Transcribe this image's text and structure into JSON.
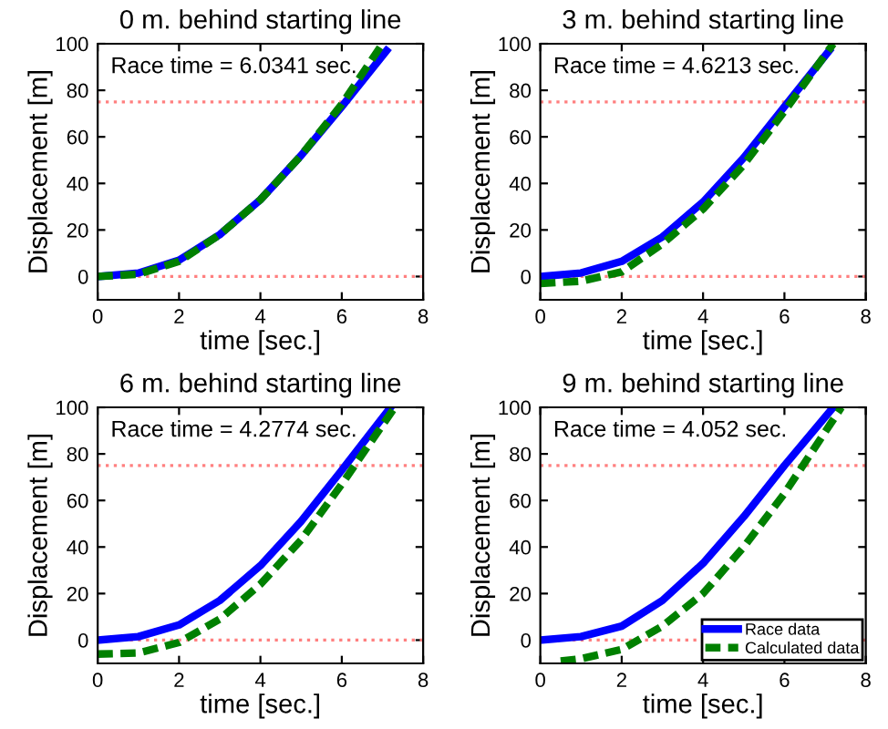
{
  "chart_data": [
    {
      "type": "line",
      "title": "0 m. behind starting line",
      "xlabel": "time [sec.]",
      "ylabel": "Displacement [m]",
      "annotations": [
        "Race time = 6.0341 sec."
      ],
      "xlim": [
        0,
        8
      ],
      "ylim": [
        -10,
        100
      ],
      "xticks": [
        0,
        2,
        4,
        6,
        8
      ],
      "yticks": [
        0,
        20,
        40,
        60,
        80,
        100
      ],
      "marker": "none",
      "legend": false,
      "ref_lines": [
        {
          "axis": "y",
          "value": 0,
          "color": "#ff8080",
          "line_style": "dotted"
        },
        {
          "axis": "y",
          "value": 75,
          "color": "#ff8080",
          "line_style": "dotted"
        }
      ],
      "series": [
        {
          "color": "#0000ff",
          "line_style": "solid",
          "x": [
            0,
            1,
            2,
            3,
            4,
            5,
            6,
            7.1
          ],
          "values": [
            0,
            1.5,
            7,
            18,
            33,
            52,
            73,
            97
          ]
        },
        {
          "color": "#008000",
          "line_style": "dashed",
          "x": [
            0,
            1,
            2,
            3,
            4,
            5,
            6,
            7.0
          ],
          "values": [
            0,
            1,
            6.5,
            18,
            33,
            52,
            74,
            100
          ]
        }
      ]
    },
    {
      "type": "line",
      "title": "3 m. behind starting line",
      "xlabel": "time [sec.]",
      "ylabel": "Displacement [m]",
      "annotations": [
        "Race time = 4.6213 sec."
      ],
      "xlim": [
        0,
        8
      ],
      "ylim": [
        -10,
        100
      ],
      "xticks": [
        0,
        2,
        4,
        6,
        8
      ],
      "yticks": [
        0,
        20,
        40,
        60,
        80,
        100
      ],
      "marker": "none",
      "legend": false,
      "ref_lines": [
        {
          "axis": "y",
          "value": 0,
          "color": "#ff8080",
          "line_style": "dotted"
        },
        {
          "axis": "y",
          "value": 75,
          "color": "#ff8080",
          "line_style": "dotted"
        }
      ],
      "series": [
        {
          "color": "#0000ff",
          "line_style": "solid",
          "x": [
            0,
            1,
            2,
            3,
            4,
            5,
            6,
            7.1
          ],
          "values": [
            0,
            1.5,
            6.5,
            17,
            32,
            51,
            73,
            97
          ]
        },
        {
          "color": "#008000",
          "line_style": "dashed",
          "x": [
            0,
            1,
            2,
            3,
            4,
            5,
            6,
            7.2
          ],
          "values": [
            -3,
            -2,
            2,
            14,
            29,
            48,
            71,
            100
          ]
        }
      ]
    },
    {
      "type": "line",
      "title": "6 m. behind starting line",
      "xlabel": "time [sec.]",
      "ylabel": "Displacement [m]",
      "annotations": [
        "Race time = 4.2774 sec."
      ],
      "xlim": [
        0,
        8
      ],
      "ylim": [
        -10,
        100
      ],
      "xticks": [
        0,
        2,
        4,
        6,
        8
      ],
      "yticks": [
        0,
        20,
        40,
        60,
        80,
        100
      ],
      "marker": "none",
      "legend": false,
      "ref_lines": [
        {
          "axis": "y",
          "value": 0,
          "color": "#ff8080",
          "line_style": "dotted"
        },
        {
          "axis": "y",
          "value": 75,
          "color": "#ff8080",
          "line_style": "dotted"
        }
      ],
      "series": [
        {
          "color": "#0000ff",
          "line_style": "solid",
          "x": [
            0,
            1,
            2,
            3,
            4,
            5,
            6,
            7.2
          ],
          "values": [
            0,
            1.5,
            6.5,
            17,
            32,
            51,
            73,
            100
          ]
        },
        {
          "color": "#008000",
          "line_style": "dashed",
          "x": [
            0,
            1,
            2,
            3,
            4,
            5,
            6,
            7.3
          ],
          "values": [
            -6,
            -5.5,
            -1,
            9,
            24,
            43,
            67,
            100
          ]
        }
      ]
    },
    {
      "type": "line",
      "title": "9 m. behind starting line",
      "xlabel": "time [sec.]",
      "ylabel": "Displacement [m]",
      "annotations": [
        "Race time = 4.052 sec."
      ],
      "xlim": [
        0,
        8
      ],
      "ylim": [
        -10,
        100
      ],
      "xticks": [
        0,
        2,
        4,
        6,
        8
      ],
      "yticks": [
        0,
        20,
        40,
        60,
        80,
        100
      ],
      "marker": "none",
      "legend": "bottom right",
      "ref_lines": [
        {
          "axis": "y",
          "value": 0,
          "color": "#ff8080",
          "line_style": "dotted"
        },
        {
          "axis": "y",
          "value": 75,
          "color": "#ff8080",
          "line_style": "dotted"
        }
      ],
      "series": [
        {
          "name": "Race data",
          "color": "#0000ff",
          "line_style": "solid",
          "x": [
            0,
            1,
            2,
            3,
            4,
            5,
            6,
            7.2
          ],
          "values": [
            0,
            1.5,
            6,
            17,
            33,
            53,
            75,
            100
          ]
        },
        {
          "name": "Calculated data",
          "color": "#008000",
          "line_style": "dashed",
          "x": [
            0.5,
            1,
            2,
            3,
            4,
            5,
            6,
            7.4
          ],
          "values": [
            -9,
            -8,
            -4,
            6,
            20,
            40,
            63,
            100
          ]
        }
      ]
    }
  ]
}
